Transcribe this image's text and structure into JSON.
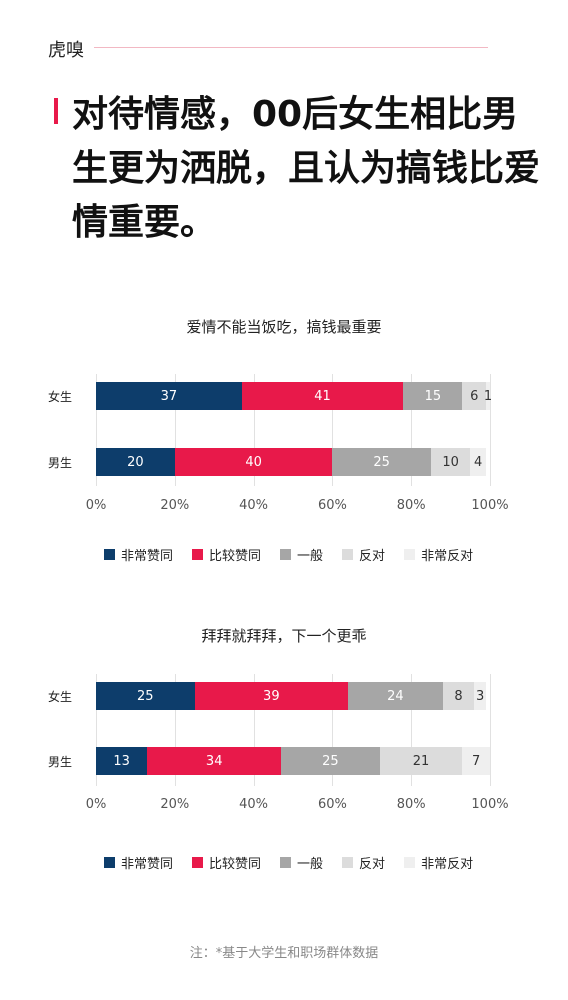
{
  "brand": {
    "logo_text": "虎嗅"
  },
  "headline": "对待情感，00后女生相比男生更为洒脱，且认为搞钱比爱情重要。",
  "colors": {
    "strongly_agree": "#0d3d6b",
    "agree": "#e8194a",
    "neutral": "#a6a6a6",
    "disagree": "#dcdcdc",
    "strongly_disagree": "#efefef",
    "accent": "#e8194a"
  },
  "chart_data": [
    {
      "type": "bar",
      "orientation": "horizontal",
      "stacked": true,
      "title": "爱情不能当饭吃，搞钱最重要",
      "categories": [
        "女生",
        "男生"
      ],
      "series": [
        {
          "name": "非常赞同",
          "values": [
            37,
            20
          ]
        },
        {
          "name": "比较赞同",
          "values": [
            41,
            40
          ]
        },
        {
          "name": "一般",
          "values": [
            15,
            25
          ]
        },
        {
          "name": "反对",
          "values": [
            6,
            10
          ]
        },
        {
          "name": "非常反对",
          "values": [
            1,
            4
          ]
        }
      ],
      "xticks": [
        "0%",
        "20%",
        "40%",
        "60%",
        "80%",
        "100%"
      ],
      "xlim": [
        0,
        100
      ],
      "legend_position": "bottom"
    },
    {
      "type": "bar",
      "orientation": "horizontal",
      "stacked": true,
      "title": "拜拜就拜拜，下一个更乖",
      "categories": [
        "女生",
        "男生"
      ],
      "series": [
        {
          "name": "非常赞同",
          "values": [
            25,
            13
          ]
        },
        {
          "name": "比较赞同",
          "values": [
            39,
            34
          ]
        },
        {
          "name": "一般",
          "values": [
            24,
            25
          ]
        },
        {
          "name": "反对",
          "values": [
            8,
            21
          ]
        },
        {
          "name": "非常反对",
          "values": [
            3,
            7
          ]
        }
      ],
      "xticks": [
        "0%",
        "20%",
        "40%",
        "60%",
        "80%",
        "100%"
      ],
      "xlim": [
        0,
        100
      ],
      "legend_position": "bottom"
    }
  ],
  "footnote": "注：*基于大学生和职场群体数据"
}
